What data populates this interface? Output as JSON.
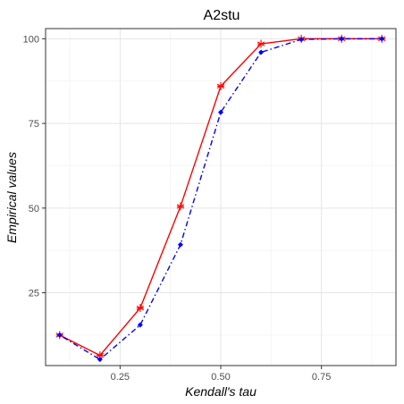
{
  "chart_data": {
    "type": "line",
    "title": "A2stu",
    "xlabel": "Kendall's tau",
    "ylabel": "Empirical values",
    "xlim": [
      0.065,
      0.935
    ],
    "ylim": [
      3.5,
      103
    ],
    "xticks": [
      0.25,
      0.5,
      0.75
    ],
    "xtick_labels": [
      "0.25",
      "0.50",
      "0.75"
    ],
    "yticks": [
      25,
      50,
      75,
      100
    ],
    "ytick_labels": [
      "25",
      "50",
      "75",
      "100"
    ],
    "grid": true,
    "legend": "none",
    "x": [
      0.1,
      0.2,
      0.3,
      0.4,
      0.5,
      0.6,
      0.7,
      0.8,
      0.9
    ],
    "series": [
      {
        "color": "#ff0000",
        "line_style": "solid",
        "marker": "asterisk",
        "values": [
          12.5,
          6.5,
          20.5,
          50.5,
          86,
          98.5,
          100,
          100,
          100
        ]
      },
      {
        "color": "#0000ff",
        "line_style": "dotdash",
        "marker": "diamond",
        "values": [
          12.5,
          5.3,
          15.5,
          39.2,
          78.3,
          96,
          99.8,
          100,
          100
        ]
      }
    ]
  }
}
